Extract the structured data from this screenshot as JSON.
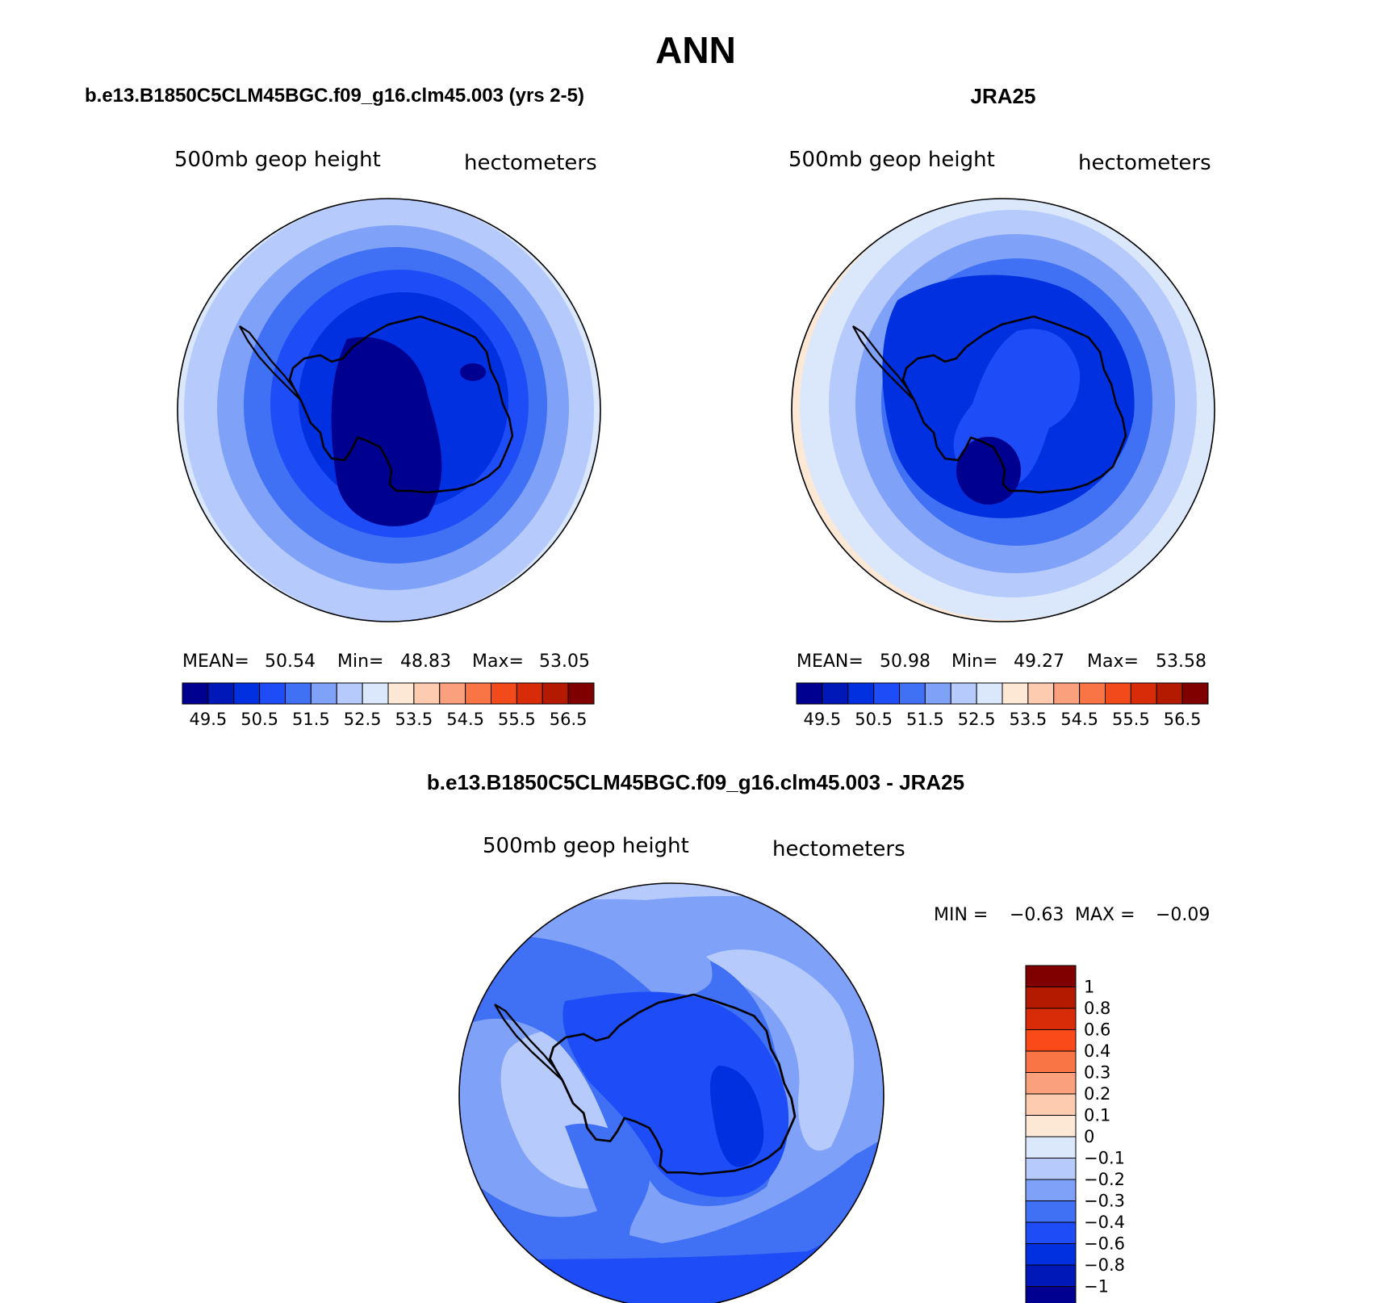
{
  "main_title": "ANN",
  "panels": [
    {
      "id": "model",
      "case_title": "b.e13.B1850C5CLM45BGC.f09_g16.clm45.003 (yrs 2-5)",
      "left_label": "500mb geop height",
      "right_label": "hectometers",
      "stats": {
        "mean_label": "MEAN=",
        "mean": "50.54",
        "min_label": "Min=",
        "min": "48.83",
        "max_label": "Max=",
        "max": "53.05"
      }
    },
    {
      "id": "obs",
      "case_title": "JRA25",
      "left_label": "500mb geop height",
      "right_label": "hectometers",
      "stats": {
        "mean_label": "MEAN=",
        "mean": "50.98",
        "min_label": "Min=",
        "min": "49.27",
        "max_label": "Max=",
        "max": "53.58"
      }
    },
    {
      "id": "diff",
      "case_title": "b.e13.B1850C5CLM45BGC.f09_g16.clm45.003 - JRA25",
      "left_label": "500mb geop height",
      "right_label": "hectometers",
      "stats": {
        "min_label": "MIN =",
        "min": "−0.63",
        "max_label": "MAX =",
        "max": "−0.09"
      }
    }
  ],
  "chart_data": [
    {
      "type": "heatmap",
      "projection": "south-polar-stereographic",
      "title": "b.e13.B1850C5CLM45BGC.f09_g16.clm45.003 (yrs 2-5)",
      "variable": "500mb geop height",
      "units": "hectometers",
      "mean": 50.54,
      "min": 48.83,
      "max": 53.05,
      "colorbar": {
        "orientation": "horizontal",
        "tick_labels": [
          "49.5",
          "50.5",
          "51.5",
          "52.5",
          "53.5",
          "54.5",
          "55.5",
          "56.5"
        ],
        "levels": [
          49,
          49.5,
          50,
          50.5,
          51,
          51.5,
          52,
          52.5,
          53,
          53.5,
          54,
          54.5,
          55,
          55.5,
          56,
          56.5
        ],
        "colors": [
          "#000090",
          "#0018b8",
          "#0030e0",
          "#1e4cf6",
          "#4070f4",
          "#7fa2f8",
          "#b6cafc",
          "#dbe8fb",
          "#fde8d6",
          "#fccbb0",
          "#fba07c",
          "#fa7546",
          "#f24a1a",
          "#d82c08",
          "#b31a00",
          "#800000"
        ]
      }
    },
    {
      "type": "heatmap",
      "projection": "south-polar-stereographic",
      "title": "JRA25",
      "variable": "500mb geop height",
      "units": "hectometers",
      "mean": 50.98,
      "min": 49.27,
      "max": 53.58,
      "colorbar": {
        "orientation": "horizontal",
        "tick_labels": [
          "49.5",
          "50.5",
          "51.5",
          "52.5",
          "53.5",
          "54.5",
          "55.5",
          "56.5"
        ],
        "levels": [
          49,
          49.5,
          50,
          50.5,
          51,
          51.5,
          52,
          52.5,
          53,
          53.5,
          54,
          54.5,
          55,
          55.5,
          56,
          56.5
        ],
        "colors": [
          "#000090",
          "#0018b8",
          "#0030e0",
          "#1e4cf6",
          "#4070f4",
          "#7fa2f8",
          "#b6cafc",
          "#dbe8fb",
          "#fde8d6",
          "#fccbb0",
          "#fba07c",
          "#fa7546",
          "#f24a1a",
          "#d82c08",
          "#b31a00",
          "#800000"
        ]
      }
    },
    {
      "type": "heatmap",
      "projection": "south-polar-stereographic",
      "title": "b.e13.B1850C5CLM45BGC.f09_g16.clm45.003 - JRA25",
      "variable": "500mb geop height",
      "units": "hectometers",
      "min": -0.63,
      "max": -0.09,
      "colorbar": {
        "orientation": "vertical",
        "tick_labels": [
          "1",
          "0.8",
          "0.6",
          "0.4",
          "0.3",
          "0.2",
          "0.1",
          "0",
          "−0.1",
          "−0.2",
          "−0.3",
          "−0.4",
          "−0.6",
          "−0.8",
          "−1"
        ],
        "levels": [
          1,
          0.8,
          0.6,
          0.4,
          0.3,
          0.2,
          0.1,
          0,
          -0.1,
          -0.2,
          -0.3,
          -0.4,
          -0.6,
          -0.8,
          -1
        ],
        "colors": [
          "#800000",
          "#b31a00",
          "#d82c08",
          "#fa4a1a",
          "#fa7546",
          "#fba07c",
          "#fccbb0",
          "#fde8d6",
          "#dbe8fb",
          "#b6cafc",
          "#7fa2f8",
          "#4070f4",
          "#1e4cf6",
          "#0030e0",
          "#0018b8",
          "#000090"
        ]
      }
    }
  ]
}
